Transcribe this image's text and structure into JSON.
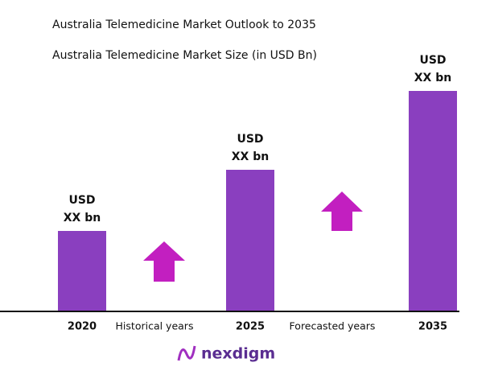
{
  "chart_data": {
    "type": "bar",
    "title": "Australia Telemedicine Market Outlook to 2035",
    "subtitle": "Australia Telemedicine Market Size (in USD Bn)",
    "categories": [
      "2020",
      "2025",
      "2035"
    ],
    "values": [
      99,
      175,
      273
    ],
    "value_labels": [
      [
        "USD",
        "XX bn"
      ],
      [
        "USD",
        "XX bn"
      ],
      [
        "USD",
        "XX bn"
      ]
    ],
    "color": "#8a3fbf",
    "annotations": [
      "Historical years",
      "Forecasted years"
    ],
    "brand": "nexdigm"
  }
}
